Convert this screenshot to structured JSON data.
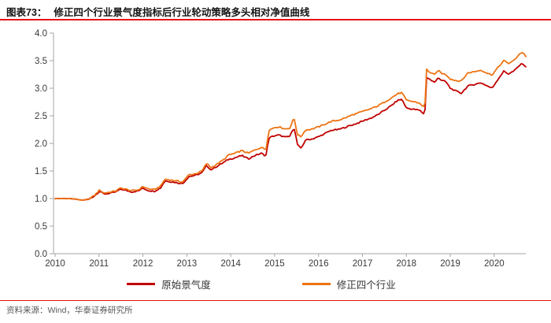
{
  "header": {
    "label": "图表73：",
    "title": "修正四个行业景气度指标后行业轮动策略多头相对净值曲线"
  },
  "footer": {
    "source": "资料来源：Wind，华泰证券研究所"
  },
  "colors": {
    "rule_red": "#e8130a",
    "axis_gray": "#a6a6a6",
    "tick_text": "#3a3a3a",
    "series_red": "#c00000",
    "series_orange": "#ed7414"
  },
  "chart_data": {
    "type": "line",
    "title": "修正四个行业景气度指标后行业轮动策略多头相对净值曲线",
    "xlabel": "",
    "ylabel": "",
    "xlim": [
      2010,
      2020.72
    ],
    "ylim": [
      0,
      4
    ],
    "grid": false,
    "legend_position": "bottom",
    "x_ticks": [
      2010,
      2011,
      2012,
      2013,
      2014,
      2015,
      2016,
      2017,
      2018,
      2019,
      2020
    ],
    "y_ticks": [
      "0.0",
      "0.5",
      "1.0",
      "1.5",
      "2.0",
      "2.5",
      "3.0",
      "3.5",
      "4.0"
    ],
    "series": [
      {
        "name": "原始景气度",
        "color": "#c00000",
        "points": [
          [
            2010.0,
            1.0
          ],
          [
            2010.15,
            1.0
          ],
          [
            2010.3,
            1.0
          ],
          [
            2010.45,
            0.99
          ],
          [
            2010.6,
            0.97
          ],
          [
            2010.75,
            0.98
          ],
          [
            2010.9,
            1.05
          ],
          [
            2011.02,
            1.14
          ],
          [
            2011.1,
            1.08
          ],
          [
            2011.2,
            1.09
          ],
          [
            2011.35,
            1.11
          ],
          [
            2011.5,
            1.17
          ],
          [
            2011.6,
            1.15
          ],
          [
            2011.75,
            1.12
          ],
          [
            2011.9,
            1.14
          ],
          [
            2012.0,
            1.19
          ],
          [
            2012.1,
            1.15
          ],
          [
            2012.25,
            1.13
          ],
          [
            2012.4,
            1.19
          ],
          [
            2012.5,
            1.32
          ],
          [
            2012.6,
            1.31
          ],
          [
            2012.75,
            1.29
          ],
          [
            2012.9,
            1.27
          ],
          [
            2013.05,
            1.4
          ],
          [
            2013.2,
            1.42
          ],
          [
            2013.35,
            1.47
          ],
          [
            2013.45,
            1.6
          ],
          [
            2013.55,
            1.52
          ],
          [
            2013.7,
            1.59
          ],
          [
            2013.85,
            1.66
          ],
          [
            2013.95,
            1.71
          ],
          [
            2014.1,
            1.74
          ],
          [
            2014.25,
            1.78
          ],
          [
            2014.4,
            1.72
          ],
          [
            2014.55,
            1.78
          ],
          [
            2014.7,
            1.82
          ],
          [
            2014.8,
            1.77
          ],
          [
            2014.87,
            2.1
          ],
          [
            2015.0,
            2.14
          ],
          [
            2015.1,
            2.15
          ],
          [
            2015.25,
            2.11
          ],
          [
            2015.35,
            2.13
          ],
          [
            2015.44,
            2.3
          ],
          [
            2015.52,
            1.98
          ],
          [
            2015.6,
            1.9
          ],
          [
            2015.7,
            2.06
          ],
          [
            2015.85,
            2.08
          ],
          [
            2016.0,
            2.12
          ],
          [
            2016.15,
            2.18
          ],
          [
            2016.3,
            2.24
          ],
          [
            2016.45,
            2.25
          ],
          [
            2016.6,
            2.29
          ],
          [
            2016.75,
            2.33
          ],
          [
            2016.9,
            2.37
          ],
          [
            2017.05,
            2.42
          ],
          [
            2017.2,
            2.46
          ],
          [
            2017.35,
            2.52
          ],
          [
            2017.5,
            2.6
          ],
          [
            2017.65,
            2.68
          ],
          [
            2017.8,
            2.78
          ],
          [
            2017.9,
            2.8
          ],
          [
            2018.0,
            2.64
          ],
          [
            2018.15,
            2.62
          ],
          [
            2018.3,
            2.6
          ],
          [
            2018.42,
            2.52
          ],
          [
            2018.46,
            3.2
          ],
          [
            2018.55,
            3.15
          ],
          [
            2018.65,
            3.1
          ],
          [
            2018.72,
            3.2
          ],
          [
            2018.8,
            3.14
          ],
          [
            2018.9,
            3.12
          ],
          [
            2019.0,
            3.0
          ],
          [
            2019.12,
            2.95
          ],
          [
            2019.25,
            2.91
          ],
          [
            2019.4,
            3.04
          ],
          [
            2019.55,
            3.07
          ],
          [
            2019.7,
            3.1
          ],
          [
            2019.82,
            3.05
          ],
          [
            2019.95,
            3.0
          ],
          [
            2020.1,
            3.18
          ],
          [
            2020.22,
            3.31
          ],
          [
            2020.32,
            3.26
          ],
          [
            2020.45,
            3.31
          ],
          [
            2020.57,
            3.41
          ],
          [
            2020.65,
            3.45
          ],
          [
            2020.72,
            3.38
          ]
        ]
      },
      {
        "name": "修正四个行业",
        "color": "#ed7414",
        "points": [
          [
            2010.0,
            1.0
          ],
          [
            2010.15,
            1.0
          ],
          [
            2010.3,
            1.0
          ],
          [
            2010.45,
            0.99
          ],
          [
            2010.6,
            0.97
          ],
          [
            2010.75,
            0.98
          ],
          [
            2010.9,
            1.06
          ],
          [
            2011.02,
            1.16
          ],
          [
            2011.1,
            1.1
          ],
          [
            2011.2,
            1.11
          ],
          [
            2011.35,
            1.13
          ],
          [
            2011.5,
            1.19
          ],
          [
            2011.6,
            1.17
          ],
          [
            2011.75,
            1.14
          ],
          [
            2011.9,
            1.16
          ],
          [
            2012.0,
            1.22
          ],
          [
            2012.1,
            1.18
          ],
          [
            2012.25,
            1.16
          ],
          [
            2012.4,
            1.22
          ],
          [
            2012.5,
            1.35
          ],
          [
            2012.6,
            1.34
          ],
          [
            2012.75,
            1.32
          ],
          [
            2012.9,
            1.3
          ],
          [
            2013.05,
            1.43
          ],
          [
            2013.2,
            1.45
          ],
          [
            2013.35,
            1.5
          ],
          [
            2013.45,
            1.64
          ],
          [
            2013.55,
            1.56
          ],
          [
            2013.7,
            1.63
          ],
          [
            2013.85,
            1.71
          ],
          [
            2013.95,
            1.79
          ],
          [
            2014.1,
            1.82
          ],
          [
            2014.25,
            1.87
          ],
          [
            2014.4,
            1.82
          ],
          [
            2014.55,
            1.88
          ],
          [
            2014.7,
            1.93
          ],
          [
            2014.8,
            1.88
          ],
          [
            2014.87,
            2.24
          ],
          [
            2015.0,
            2.29
          ],
          [
            2015.1,
            2.3
          ],
          [
            2015.25,
            2.26
          ],
          [
            2015.35,
            2.28
          ],
          [
            2015.44,
            2.47
          ],
          [
            2015.52,
            2.16
          ],
          [
            2015.6,
            2.12
          ],
          [
            2015.7,
            2.24
          ],
          [
            2015.85,
            2.26
          ],
          [
            2016.0,
            2.3
          ],
          [
            2016.15,
            2.35
          ],
          [
            2016.3,
            2.4
          ],
          [
            2016.45,
            2.42
          ],
          [
            2016.6,
            2.46
          ],
          [
            2016.75,
            2.51
          ],
          [
            2016.9,
            2.55
          ],
          [
            2017.05,
            2.59
          ],
          [
            2017.2,
            2.63
          ],
          [
            2017.35,
            2.68
          ],
          [
            2017.5,
            2.75
          ],
          [
            2017.65,
            2.82
          ],
          [
            2017.8,
            2.9
          ],
          [
            2017.9,
            2.92
          ],
          [
            2018.0,
            2.78
          ],
          [
            2018.15,
            2.76
          ],
          [
            2018.3,
            2.73
          ],
          [
            2018.42,
            2.64
          ],
          [
            2018.46,
            3.34
          ],
          [
            2018.55,
            3.28
          ],
          [
            2018.65,
            3.24
          ],
          [
            2018.72,
            3.33
          ],
          [
            2018.8,
            3.27
          ],
          [
            2018.9,
            3.25
          ],
          [
            2019.0,
            3.17
          ],
          [
            2019.12,
            3.14
          ],
          [
            2019.25,
            3.13
          ],
          [
            2019.4,
            3.28
          ],
          [
            2019.55,
            3.3
          ],
          [
            2019.7,
            3.33
          ],
          [
            2019.82,
            3.28
          ],
          [
            2019.95,
            3.24
          ],
          [
            2020.1,
            3.39
          ],
          [
            2020.22,
            3.5
          ],
          [
            2020.32,
            3.45
          ],
          [
            2020.45,
            3.5
          ],
          [
            2020.57,
            3.62
          ],
          [
            2020.65,
            3.65
          ],
          [
            2020.72,
            3.58
          ]
        ]
      }
    ]
  }
}
